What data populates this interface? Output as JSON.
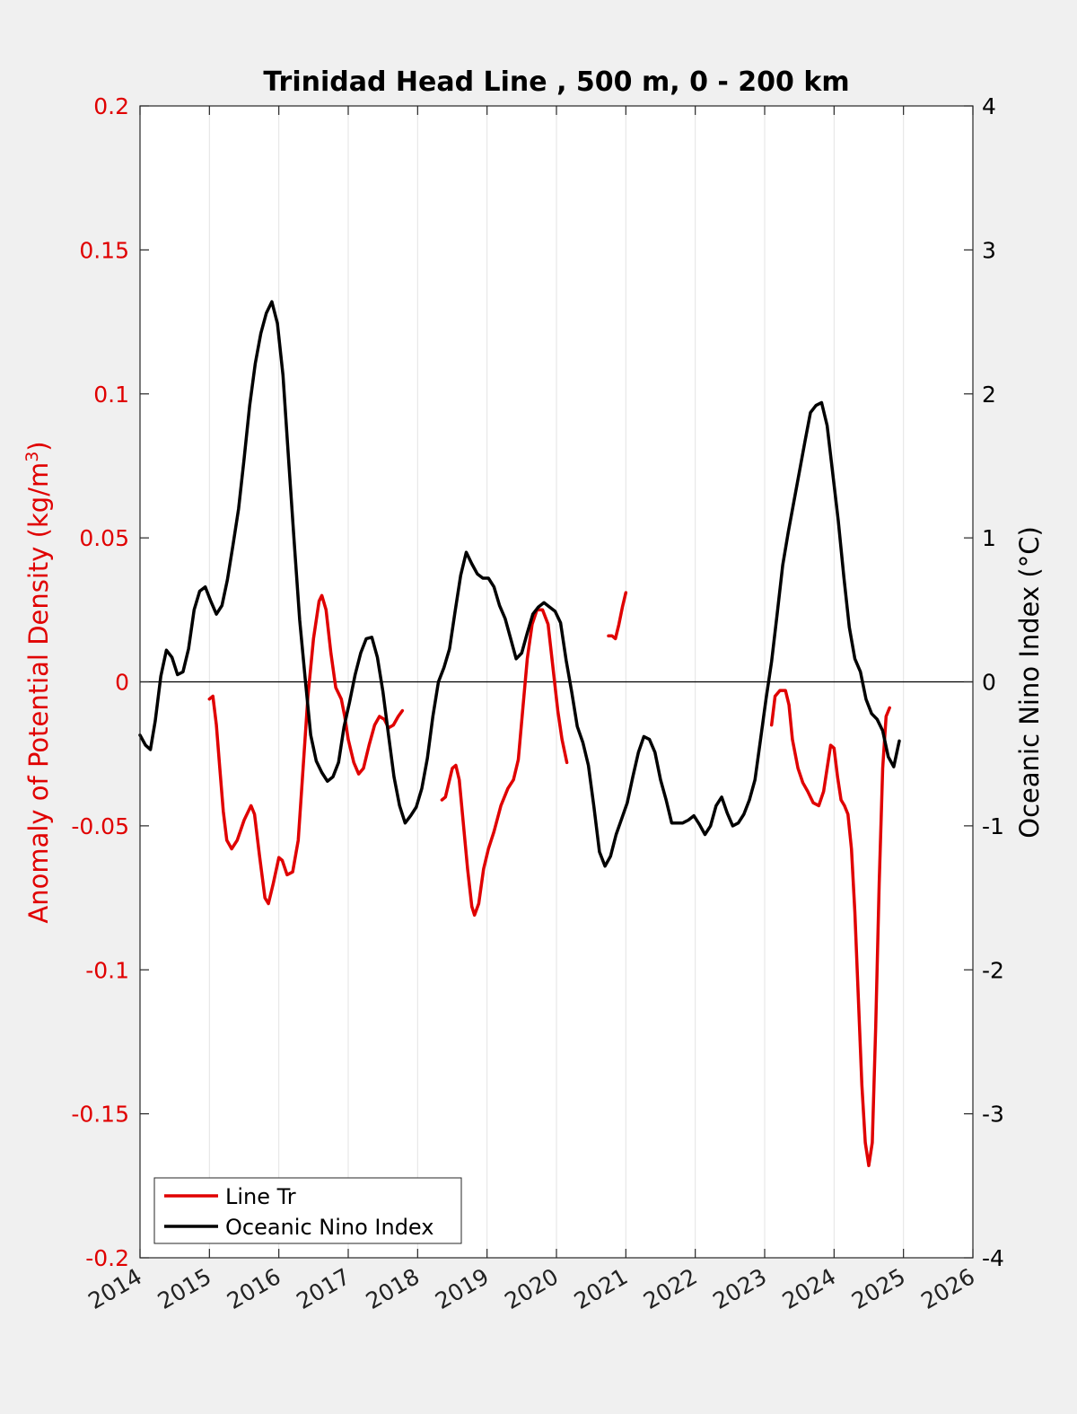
{
  "chart_data": {
    "type": "line",
    "title": "Trinidad Head Line , 500 m, 0 - 200 km",
    "xlabel": "",
    "ylabel_left": "Anomaly of Potential Density (kg/m",
    "ylabel_left_sup": "3",
    "ylabel_left_close": ")",
    "ylabel_right": "Oceanic Nino Index (°C)",
    "xlim": [
      2014,
      2026
    ],
    "ylim_left": [
      -0.2,
      0.2
    ],
    "ylim_right": [
      -4,
      4
    ],
    "grid": "vertical-only",
    "xticks": [
      2014,
      2015,
      2016,
      2017,
      2018,
      2019,
      2020,
      2021,
      2022,
      2023,
      2024,
      2025,
      2026
    ],
    "xtick_labels": [
      "2014",
      "2015",
      "2016",
      "2017",
      "2018",
      "2019",
      "2020",
      "2021",
      "2022",
      "2023",
      "2024",
      "2025",
      "2026"
    ],
    "yticks_left": [
      0.2,
      0.15,
      0.1,
      0.05,
      0,
      -0.05,
      -0.1,
      -0.15,
      -0.2
    ],
    "ytick_labels_left": [
      "0.2",
      "0.15",
      "0.1",
      "0.05",
      "0",
      "-0.05",
      "-0.1",
      "-0.15",
      "-0.2"
    ],
    "yticks_right": [
      4,
      3,
      2,
      1,
      0,
      -1,
      -2,
      -3,
      -4
    ],
    "ytick_labels_right": [
      "4",
      "3",
      "2",
      "1",
      "0",
      "-1",
      "-2",
      "-3",
      "-4"
    ],
    "legend_placement": "bottom-left",
    "series": [
      {
        "name": "Line Tr",
        "axis": "left",
        "color": "#e00000",
        "segments": [
          [
            [
              2015.0,
              -0.006
            ],
            [
              2015.05,
              -0.005
            ],
            [
              2015.1,
              -0.015
            ],
            [
              2015.15,
              -0.03
            ],
            [
              2015.2,
              -0.045
            ],
            [
              2015.25,
              -0.055
            ],
            [
              2015.32,
              -0.058
            ],
            [
              2015.4,
              -0.055
            ],
            [
              2015.5,
              -0.048
            ],
            [
              2015.6,
              -0.043
            ],
            [
              2015.65,
              -0.046
            ],
            [
              2015.72,
              -0.06
            ],
            [
              2015.8,
              -0.075
            ],
            [
              2015.85,
              -0.077
            ],
            [
              2015.92,
              -0.07
            ],
            [
              2016.0,
              -0.061
            ],
            [
              2016.05,
              -0.062
            ],
            [
              2016.12,
              -0.067
            ],
            [
              2016.2,
              -0.066
            ],
            [
              2016.28,
              -0.055
            ],
            [
              2016.35,
              -0.03
            ],
            [
              2016.42,
              -0.005
            ],
            [
              2016.5,
              0.015
            ],
            [
              2016.58,
              0.028
            ],
            [
              2016.62,
              0.03
            ],
            [
              2016.68,
              0.025
            ],
            [
              2016.75,
              0.01
            ],
            [
              2016.82,
              -0.002
            ],
            [
              2016.9,
              -0.006
            ],
            [
              2016.95,
              -0.012
            ],
            [
              2017.0,
              -0.02
            ],
            [
              2017.08,
              -0.028
            ],
            [
              2017.15,
              -0.032
            ],
            [
              2017.22,
              -0.03
            ],
            [
              2017.3,
              -0.022
            ],
            [
              2017.38,
              -0.015
            ],
            [
              2017.45,
              -0.012
            ],
            [
              2017.52,
              -0.013
            ],
            [
              2017.58,
              -0.016
            ],
            [
              2017.65,
              -0.015
            ],
            [
              2017.72,
              -0.012
            ],
            [
              2017.78,
              -0.01
            ]
          ],
          [
            [
              2018.35,
              -0.041
            ],
            [
              2018.4,
              -0.04
            ],
            [
              2018.45,
              -0.035
            ],
            [
              2018.5,
              -0.03
            ],
            [
              2018.55,
              -0.029
            ],
            [
              2018.6,
              -0.034
            ],
            [
              2018.65,
              -0.047
            ],
            [
              2018.72,
              -0.065
            ],
            [
              2018.78,
              -0.078
            ],
            [
              2018.82,
              -0.081
            ],
            [
              2018.88,
              -0.077
            ],
            [
              2018.95,
              -0.065
            ],
            [
              2019.02,
              -0.058
            ],
            [
              2019.1,
              -0.052
            ],
            [
              2019.2,
              -0.043
            ],
            [
              2019.3,
              -0.037
            ],
            [
              2019.38,
              -0.034
            ],
            [
              2019.45,
              -0.027
            ],
            [
              2019.52,
              -0.008
            ],
            [
              2019.58,
              0.008
            ],
            [
              2019.65,
              0.02
            ],
            [
              2019.72,
              0.025
            ],
            [
              2019.8,
              0.025
            ],
            [
              2019.88,
              0.02
            ],
            [
              2019.95,
              0.005
            ],
            [
              2020.02,
              -0.01
            ],
            [
              2020.08,
              -0.02
            ],
            [
              2020.15,
              -0.028
            ]
          ],
          [
            [
              2020.75,
              0.016
            ],
            [
              2020.8,
              0.016
            ],
            [
              2020.85,
              0.015
            ],
            [
              2020.9,
              0.02
            ],
            [
              2020.95,
              0.026
            ],
            [
              2021.0,
              0.031
            ]
          ],
          [
            [
              2023.1,
              -0.015
            ],
            [
              2023.15,
              -0.005
            ],
            [
              2023.22,
              -0.003
            ],
            [
              2023.3,
              -0.003
            ],
            [
              2023.35,
              -0.008
            ],
            [
              2023.4,
              -0.02
            ],
            [
              2023.48,
              -0.03
            ],
            [
              2023.55,
              -0.035
            ],
            [
              2023.62,
              -0.038
            ],
            [
              2023.7,
              -0.042
            ],
            [
              2023.78,
              -0.043
            ],
            [
              2023.85,
              -0.038
            ],
            [
              2023.9,
              -0.03
            ],
            [
              2023.95,
              -0.022
            ],
            [
              2024.0,
              -0.023
            ],
            [
              2024.05,
              -0.033
            ],
            [
              2024.1,
              -0.041
            ],
            [
              2024.15,
              -0.043
            ],
            [
              2024.2,
              -0.046
            ],
            [
              2024.25,
              -0.058
            ],
            [
              2024.3,
              -0.08
            ],
            [
              2024.35,
              -0.11
            ],
            [
              2024.4,
              -0.14
            ],
            [
              2024.45,
              -0.16
            ],
            [
              2024.5,
              -0.168
            ],
            [
              2024.55,
              -0.16
            ],
            [
              2024.6,
              -0.12
            ],
            [
              2024.65,
              -0.07
            ],
            [
              2024.7,
              -0.03
            ],
            [
              2024.75,
              -0.012
            ],
            [
              2024.8,
              -0.009
            ]
          ]
        ]
      },
      {
        "name": "Oceanic Nino Index",
        "axis": "right",
        "color": "#000000",
        "points": [
          [
            2014.0,
            -0.37
          ],
          [
            2014.08,
            -0.44
          ],
          [
            2014.15,
            -0.47
          ],
          [
            2014.22,
            -0.27
          ],
          [
            2014.3,
            0.04
          ],
          [
            2014.38,
            0.22
          ],
          [
            2014.46,
            0.17
          ],
          [
            2014.54,
            0.05
          ],
          [
            2014.62,
            0.07
          ],
          [
            2014.7,
            0.23
          ],
          [
            2014.78,
            0.5
          ],
          [
            2014.86,
            0.63
          ],
          [
            2014.94,
            0.66
          ],
          [
            2015.02,
            0.56
          ],
          [
            2015.1,
            0.47
          ],
          [
            2015.18,
            0.53
          ],
          [
            2015.26,
            0.71
          ],
          [
            2015.34,
            0.95
          ],
          [
            2015.42,
            1.2
          ],
          [
            2015.5,
            1.55
          ],
          [
            2015.58,
            1.92
          ],
          [
            2015.66,
            2.21
          ],
          [
            2015.74,
            2.42
          ],
          [
            2015.82,
            2.56
          ],
          [
            2015.9,
            2.64
          ],
          [
            2015.98,
            2.49
          ],
          [
            2016.06,
            2.13
          ],
          [
            2016.14,
            1.55
          ],
          [
            2016.22,
            0.98
          ],
          [
            2016.3,
            0.43
          ],
          [
            2016.38,
            0.02
          ],
          [
            2016.46,
            -0.37
          ],
          [
            2016.54,
            -0.55
          ],
          [
            2016.62,
            -0.63
          ],
          [
            2016.7,
            -0.69
          ],
          [
            2016.78,
            -0.66
          ],
          [
            2016.86,
            -0.56
          ],
          [
            2016.94,
            -0.31
          ],
          [
            2017.02,
            -0.14
          ],
          [
            2017.1,
            0.05
          ],
          [
            2017.18,
            0.2
          ],
          [
            2017.26,
            0.3
          ],
          [
            2017.34,
            0.31
          ],
          [
            2017.42,
            0.17
          ],
          [
            2017.5,
            -0.07
          ],
          [
            2017.58,
            -0.37
          ],
          [
            2017.66,
            -0.66
          ],
          [
            2017.74,
            -0.86
          ],
          [
            2017.82,
            -0.98
          ],
          [
            2017.9,
            -0.93
          ],
          [
            2017.98,
            -0.87
          ],
          [
            2018.06,
            -0.74
          ],
          [
            2018.14,
            -0.53
          ],
          [
            2018.22,
            -0.24
          ],
          [
            2018.3,
            0.0
          ],
          [
            2018.38,
            0.1
          ],
          [
            2018.46,
            0.23
          ],
          [
            2018.54,
            0.49
          ],
          [
            2018.62,
            0.74
          ],
          [
            2018.7,
            0.9
          ],
          [
            2018.78,
            0.82
          ],
          [
            2018.86,
            0.75
          ],
          [
            2018.94,
            0.72
          ],
          [
            2019.02,
            0.72
          ],
          [
            2019.1,
            0.66
          ],
          [
            2019.18,
            0.53
          ],
          [
            2019.26,
            0.44
          ],
          [
            2019.34,
            0.3
          ],
          [
            2019.42,
            0.16
          ],
          [
            2019.5,
            0.2
          ],
          [
            2019.58,
            0.34
          ],
          [
            2019.66,
            0.47
          ],
          [
            2019.74,
            0.52
          ],
          [
            2019.82,
            0.55
          ],
          [
            2019.9,
            0.52
          ],
          [
            2019.98,
            0.49
          ],
          [
            2020.06,
            0.41
          ],
          [
            2020.14,
            0.15
          ],
          [
            2020.22,
            -0.07
          ],
          [
            2020.3,
            -0.31
          ],
          [
            2020.38,
            -0.42
          ],
          [
            2020.46,
            -0.58
          ],
          [
            2020.54,
            -0.87
          ],
          [
            2020.62,
            -1.18
          ],
          [
            2020.7,
            -1.28
          ],
          [
            2020.78,
            -1.21
          ],
          [
            2020.86,
            -1.06
          ],
          [
            2020.94,
            -0.95
          ],
          [
            2021.02,
            -0.84
          ],
          [
            2021.1,
            -0.66
          ],
          [
            2021.18,
            -0.49
          ],
          [
            2021.26,
            -0.38
          ],
          [
            2021.34,
            -0.4
          ],
          [
            2021.42,
            -0.49
          ],
          [
            2021.5,
            -0.68
          ],
          [
            2021.58,
            -0.82
          ],
          [
            2021.66,
            -0.98
          ],
          [
            2021.74,
            -0.98
          ],
          [
            2021.82,
            -0.98
          ],
          [
            2021.9,
            -0.96
          ],
          [
            2021.98,
            -0.93
          ],
          [
            2022.06,
            -0.99
          ],
          [
            2022.14,
            -1.06
          ],
          [
            2022.22,
            -1.0
          ],
          [
            2022.3,
            -0.86
          ],
          [
            2022.38,
            -0.8
          ],
          [
            2022.46,
            -0.91
          ],
          [
            2022.54,
            -1.0
          ],
          [
            2022.62,
            -0.98
          ],
          [
            2022.7,
            -0.92
          ],
          [
            2022.78,
            -0.82
          ],
          [
            2022.86,
            -0.68
          ],
          [
            2022.94,
            -0.4
          ],
          [
            2023.02,
            -0.12
          ],
          [
            2023.1,
            0.14
          ],
          [
            2023.18,
            0.47
          ],
          [
            2023.26,
            0.81
          ],
          [
            2023.34,
            1.04
          ],
          [
            2023.42,
            1.25
          ],
          [
            2023.5,
            1.46
          ],
          [
            2023.58,
            1.67
          ],
          [
            2023.66,
            1.87
          ],
          [
            2023.74,
            1.92
          ],
          [
            2023.82,
            1.94
          ],
          [
            2023.9,
            1.78
          ],
          [
            2023.98,
            1.45
          ],
          [
            2024.06,
            1.12
          ],
          [
            2024.14,
            0.73
          ],
          [
            2024.22,
            0.38
          ],
          [
            2024.3,
            0.16
          ],
          [
            2024.38,
            0.07
          ],
          [
            2024.46,
            -0.12
          ],
          [
            2024.54,
            -0.22
          ],
          [
            2024.62,
            -0.26
          ],
          [
            2024.7,
            -0.34
          ],
          [
            2024.78,
            -0.52
          ],
          [
            2024.86,
            -0.59
          ],
          [
            2024.94,
            -0.41
          ]
        ]
      }
    ]
  }
}
